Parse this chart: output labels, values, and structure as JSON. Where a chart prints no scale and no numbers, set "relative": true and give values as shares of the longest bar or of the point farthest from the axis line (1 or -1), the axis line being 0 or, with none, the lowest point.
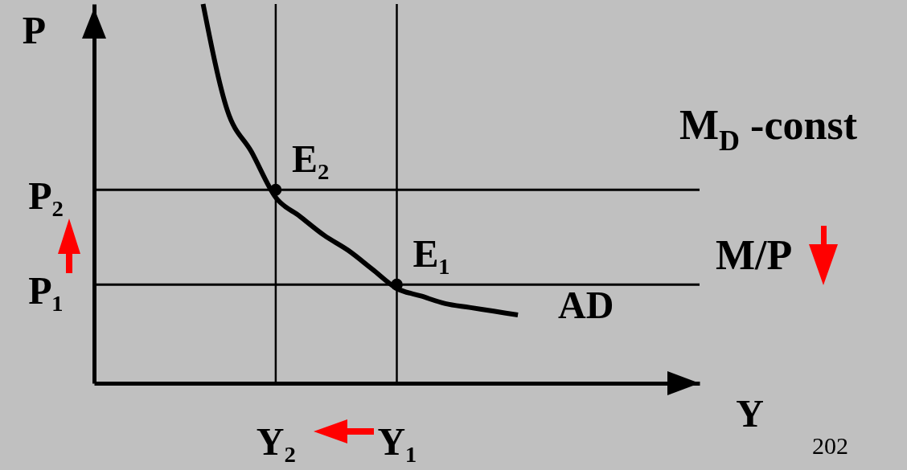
{
  "chart_data": {
    "type": "line",
    "relative": true,
    "xlabel": "Y",
    "ylabel": "P",
    "categories": [
      null,
      null,
      null,
      null,
      null,
      null,
      null,
      "Y₂",
      null,
      null,
      null,
      null,
      "Y₁",
      null,
      null,
      null,
      null,
      null,
      null,
      null,
      null,
      null,
      null,
      null,
      null
    ],
    "series": [
      {
        "name": "AD",
        "color": "#000000",
        "values": [
          null,
          null,
          null,
          null,
          1,
          0.72,
          0.61,
          0.49,
          0.44,
          0.39,
          0.35,
          0.3,
          0.25,
          0.23,
          0.21,
          0.2,
          0.19,
          0.18,
          null,
          null,
          null,
          null,
          null,
          null,
          null
        ]
      },
      {
        "type": "scatter",
        "color": "#000000",
        "values": [
          null,
          null,
          null,
          null,
          null,
          null,
          null,
          0.51,
          null,
          null,
          null,
          null,
          0.26,
          null,
          null,
          null,
          null,
          null,
          null,
          null,
          null,
          null,
          null,
          null,
          null
        ]
      }
    ],
    "ref_lines": [
      {
        "axis": "x",
        "value": "Y₂"
      },
      {
        "axis": "x",
        "value": "Y₁"
      },
      {
        "axis": "y",
        "value": 0.51,
        "label": "P₂"
      },
      {
        "axis": "y",
        "value": 0.26,
        "label": "P₁"
      }
    ],
    "annotations": [
      {
        "text": "E₂",
        "x": "Y₂",
        "y": 0.51
      },
      {
        "text": "E₁",
        "x": "Y₁",
        "y": 0.26
      },
      "M$_{D}$ -const",
      "M/P",
      "202"
    ]
  }
}
